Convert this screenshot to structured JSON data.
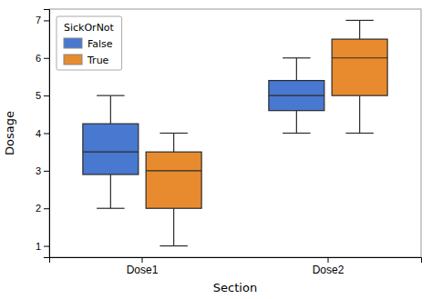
{
  "chart_data": {
    "type": "box",
    "xlabel": "Section",
    "ylabel": "Dosage",
    "legend_title": "SickOrNot",
    "categories": [
      "Dose1",
      "Dose2"
    ],
    "series": [
      {
        "name": "False",
        "color": "#4878cf",
        "values": [
          {
            "whislo": 2.0,
            "q1": 2.9,
            "med": 3.5,
            "q3": 4.25,
            "whishi": 5.0
          },
          {
            "whislo": 4.0,
            "q1": 4.6,
            "med": 5.0,
            "q3": 5.4,
            "whishi": 6.0
          }
        ]
      },
      {
        "name": "True",
        "color": "#e88b2e",
        "values": [
          {
            "whislo": 1.0,
            "q1": 2.0,
            "med": 3.0,
            "q3": 3.5,
            "whishi": 4.0
          },
          {
            "whislo": 4.0,
            "q1": 5.0,
            "med": 6.0,
            "q3": 6.5,
            "whishi": 7.0
          }
        ]
      }
    ],
    "ylim": [
      0.7,
      7.3
    ],
    "yticks": [
      1,
      2,
      3,
      4,
      5,
      6,
      7
    ],
    "grid": false,
    "legend": "upper left"
  }
}
